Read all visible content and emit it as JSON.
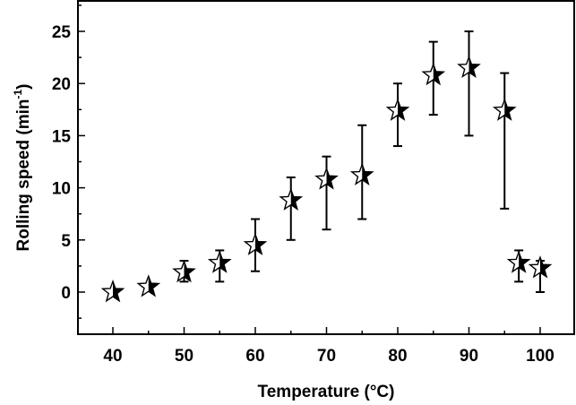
{
  "chart_data": {
    "type": "scatter",
    "title": "",
    "xlabel": "Temperature (°C)",
    "ylabel": "Rolling speed  (min",
    "ylabel_superscript": "-1",
    "ylabel_suffix": ")",
    "xlim": [
      35,
      105
    ],
    "ylim": [
      -4,
      28
    ],
    "xticks": [
      40,
      50,
      60,
      70,
      80,
      90,
      100
    ],
    "yticks": [
      0,
      5,
      10,
      15,
      20,
      25
    ],
    "grid": false,
    "legend": null,
    "marker": "half-filled star",
    "series": [
      {
        "name": "Rolling speed",
        "x": [
          40,
          45,
          50,
          55,
          60,
          65,
          70,
          75,
          80,
          85,
          90,
          95,
          97,
          100
        ],
        "y": [
          0,
          0.5,
          1.9,
          2.8,
          4.5,
          8.8,
          10.8,
          11.2,
          17.4,
          20.8,
          21.5,
          17.4,
          2.8,
          2.3
        ],
        "err_low": [
          0,
          0.5,
          1,
          1,
          2,
          5,
          6,
          7,
          14,
          17,
          15,
          8,
          1,
          0
        ],
        "err_high": [
          0,
          0.5,
          3,
          4,
          7,
          11,
          13,
          16,
          20,
          24,
          25,
          21,
          4,
          3
        ]
      }
    ]
  }
}
